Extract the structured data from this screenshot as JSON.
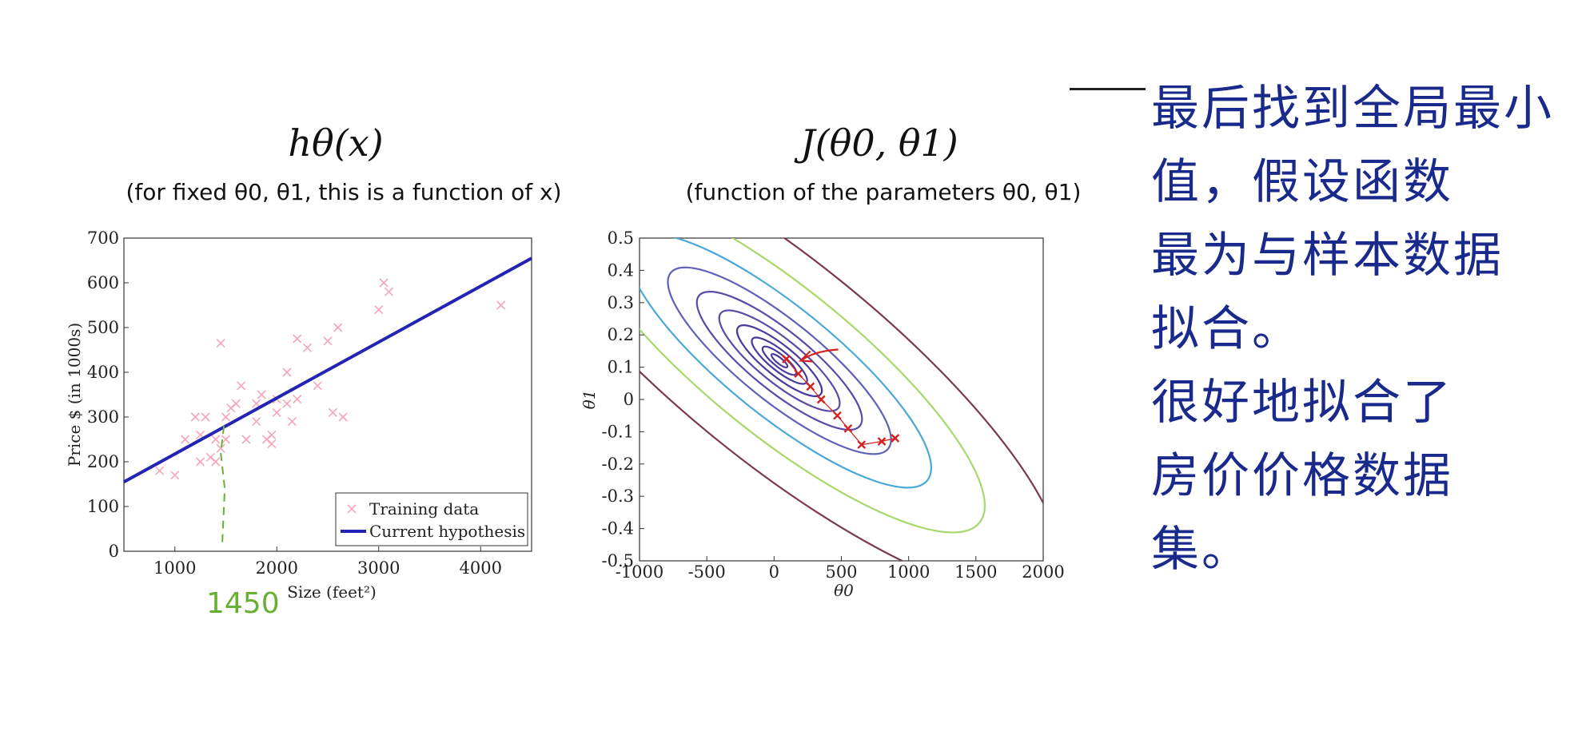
{
  "panels": {
    "left_title": "hθ(x)",
    "left_subtitle": "(for fixed θ0, θ1, this is a function of x)",
    "right_title": "J(θ0, θ1)",
    "right_subtitle": "(function of the parameters  θ0, θ1)"
  },
  "annotations": {
    "green_note": "1450",
    "handwritten_lines": [
      "最后找到全局最小",
      "值，假设函数",
      "最为与样本数据",
      "拟合。",
      "很好地拟合了",
      "房价价格数据",
      "集。"
    ]
  },
  "colors": {
    "training_marker": "#f4a6b8",
    "hypothesis_line": "#2323b4",
    "gd_steps": "#d42020",
    "handwriting": "#1a2a8c",
    "green_note": "#66b032"
  },
  "chart_data": [
    {
      "type": "scatter",
      "xlabel": "Size (feet²)",
      "ylabel": "Price $ (in 1000s)",
      "xlim": [
        500,
        4500
      ],
      "ylim": [
        0,
        700
      ],
      "xticks": [
        1000,
        2000,
        3000,
        4000
      ],
      "yticks": [
        0,
        100,
        200,
        300,
        400,
        500,
        600,
        700
      ],
      "legend": {
        "placement": "bottom-right",
        "entries": [
          "Training data",
          "Current hypothesis"
        ]
      },
      "series": [
        {
          "name": "Training data",
          "points": [
            [
              850,
              180
            ],
            [
              1000,
              170
            ],
            [
              1100,
              250
            ],
            [
              1200,
              300
            ],
            [
              1250,
              200
            ],
            [
              1250,
              260
            ],
            [
              1300,
              300
            ],
            [
              1350,
              210
            ],
            [
              1400,
              200
            ],
            [
              1400,
              250
            ],
            [
              1450,
              230
            ],
            [
              1450,
              465
            ],
            [
              1500,
              300
            ],
            [
              1500,
              250
            ],
            [
              1550,
              320
            ],
            [
              1600,
              330
            ],
            [
              1650,
              370
            ],
            [
              1700,
              250
            ],
            [
              1800,
              330
            ],
            [
              1800,
              290
            ],
            [
              1850,
              350
            ],
            [
              1900,
              250
            ],
            [
              1950,
              240
            ],
            [
              1950,
              260
            ],
            [
              2000,
              310
            ],
            [
              2000,
              340
            ],
            [
              2100,
              330
            ],
            [
              2100,
              400
            ],
            [
              2150,
              290
            ],
            [
              2200,
              475
            ],
            [
              2200,
              340
            ],
            [
              2300,
              455
            ],
            [
              2400,
              370
            ],
            [
              2500,
              470
            ],
            [
              2550,
              310
            ],
            [
              2600,
              500
            ],
            [
              2650,
              300
            ],
            [
              3000,
              540
            ],
            [
              3050,
              600
            ],
            [
              3100,
              580
            ],
            [
              4200,
              550
            ]
          ]
        },
        {
          "name": "Current hypothesis",
          "line": [
            [
              500,
              155
            ],
            [
              4500,
              655
            ]
          ]
        }
      ]
    },
    {
      "type": "contour",
      "xlabel": "θ0",
      "ylabel": "θ1",
      "xlim": [
        -1000,
        2000
      ],
      "ylim": [
        -0.5,
        0.5
      ],
      "xticks": [
        -1000,
        -500,
        0,
        500,
        1000,
        1500,
        2000
      ],
      "yticks": [
        -0.5,
        -0.4,
        -0.3,
        -0.2,
        -0.1,
        0,
        0.1,
        0.2,
        0.3,
        0.4,
        0.5
      ],
      "contour_levels": [
        {
          "color": "#4a3aa0",
          "scale": 0.18
        },
        {
          "color": "#4a3aa0",
          "scale": 0.38
        },
        {
          "color": "#4a3aa0",
          "scale": 0.62
        },
        {
          "color": "#4a3aa0",
          "scale": 0.95
        },
        {
          "color": "#5a49a8",
          "scale": 1.35
        },
        {
          "color": "#5a49a8",
          "scale": 1.85
        },
        {
          "color": "#6060b8",
          "scale": 2.5
        },
        {
          "color": "#4aa8d8",
          "scale": 3.4
        },
        {
          "color": "#a8d86a",
          "scale": 4.6
        },
        {
          "color": "#7a3a4a",
          "scale": 6.3
        }
      ],
      "gradient_descent_steps": [
        [
          900,
          -0.12
        ],
        [
          800,
          -0.13
        ],
        [
          650,
          -0.14
        ],
        [
          550,
          -0.09
        ],
        [
          470,
          -0.05
        ],
        [
          350,
          0.0
        ],
        [
          270,
          0.04
        ],
        [
          180,
          0.08
        ],
        [
          90,
          0.125
        ]
      ]
    }
  ]
}
